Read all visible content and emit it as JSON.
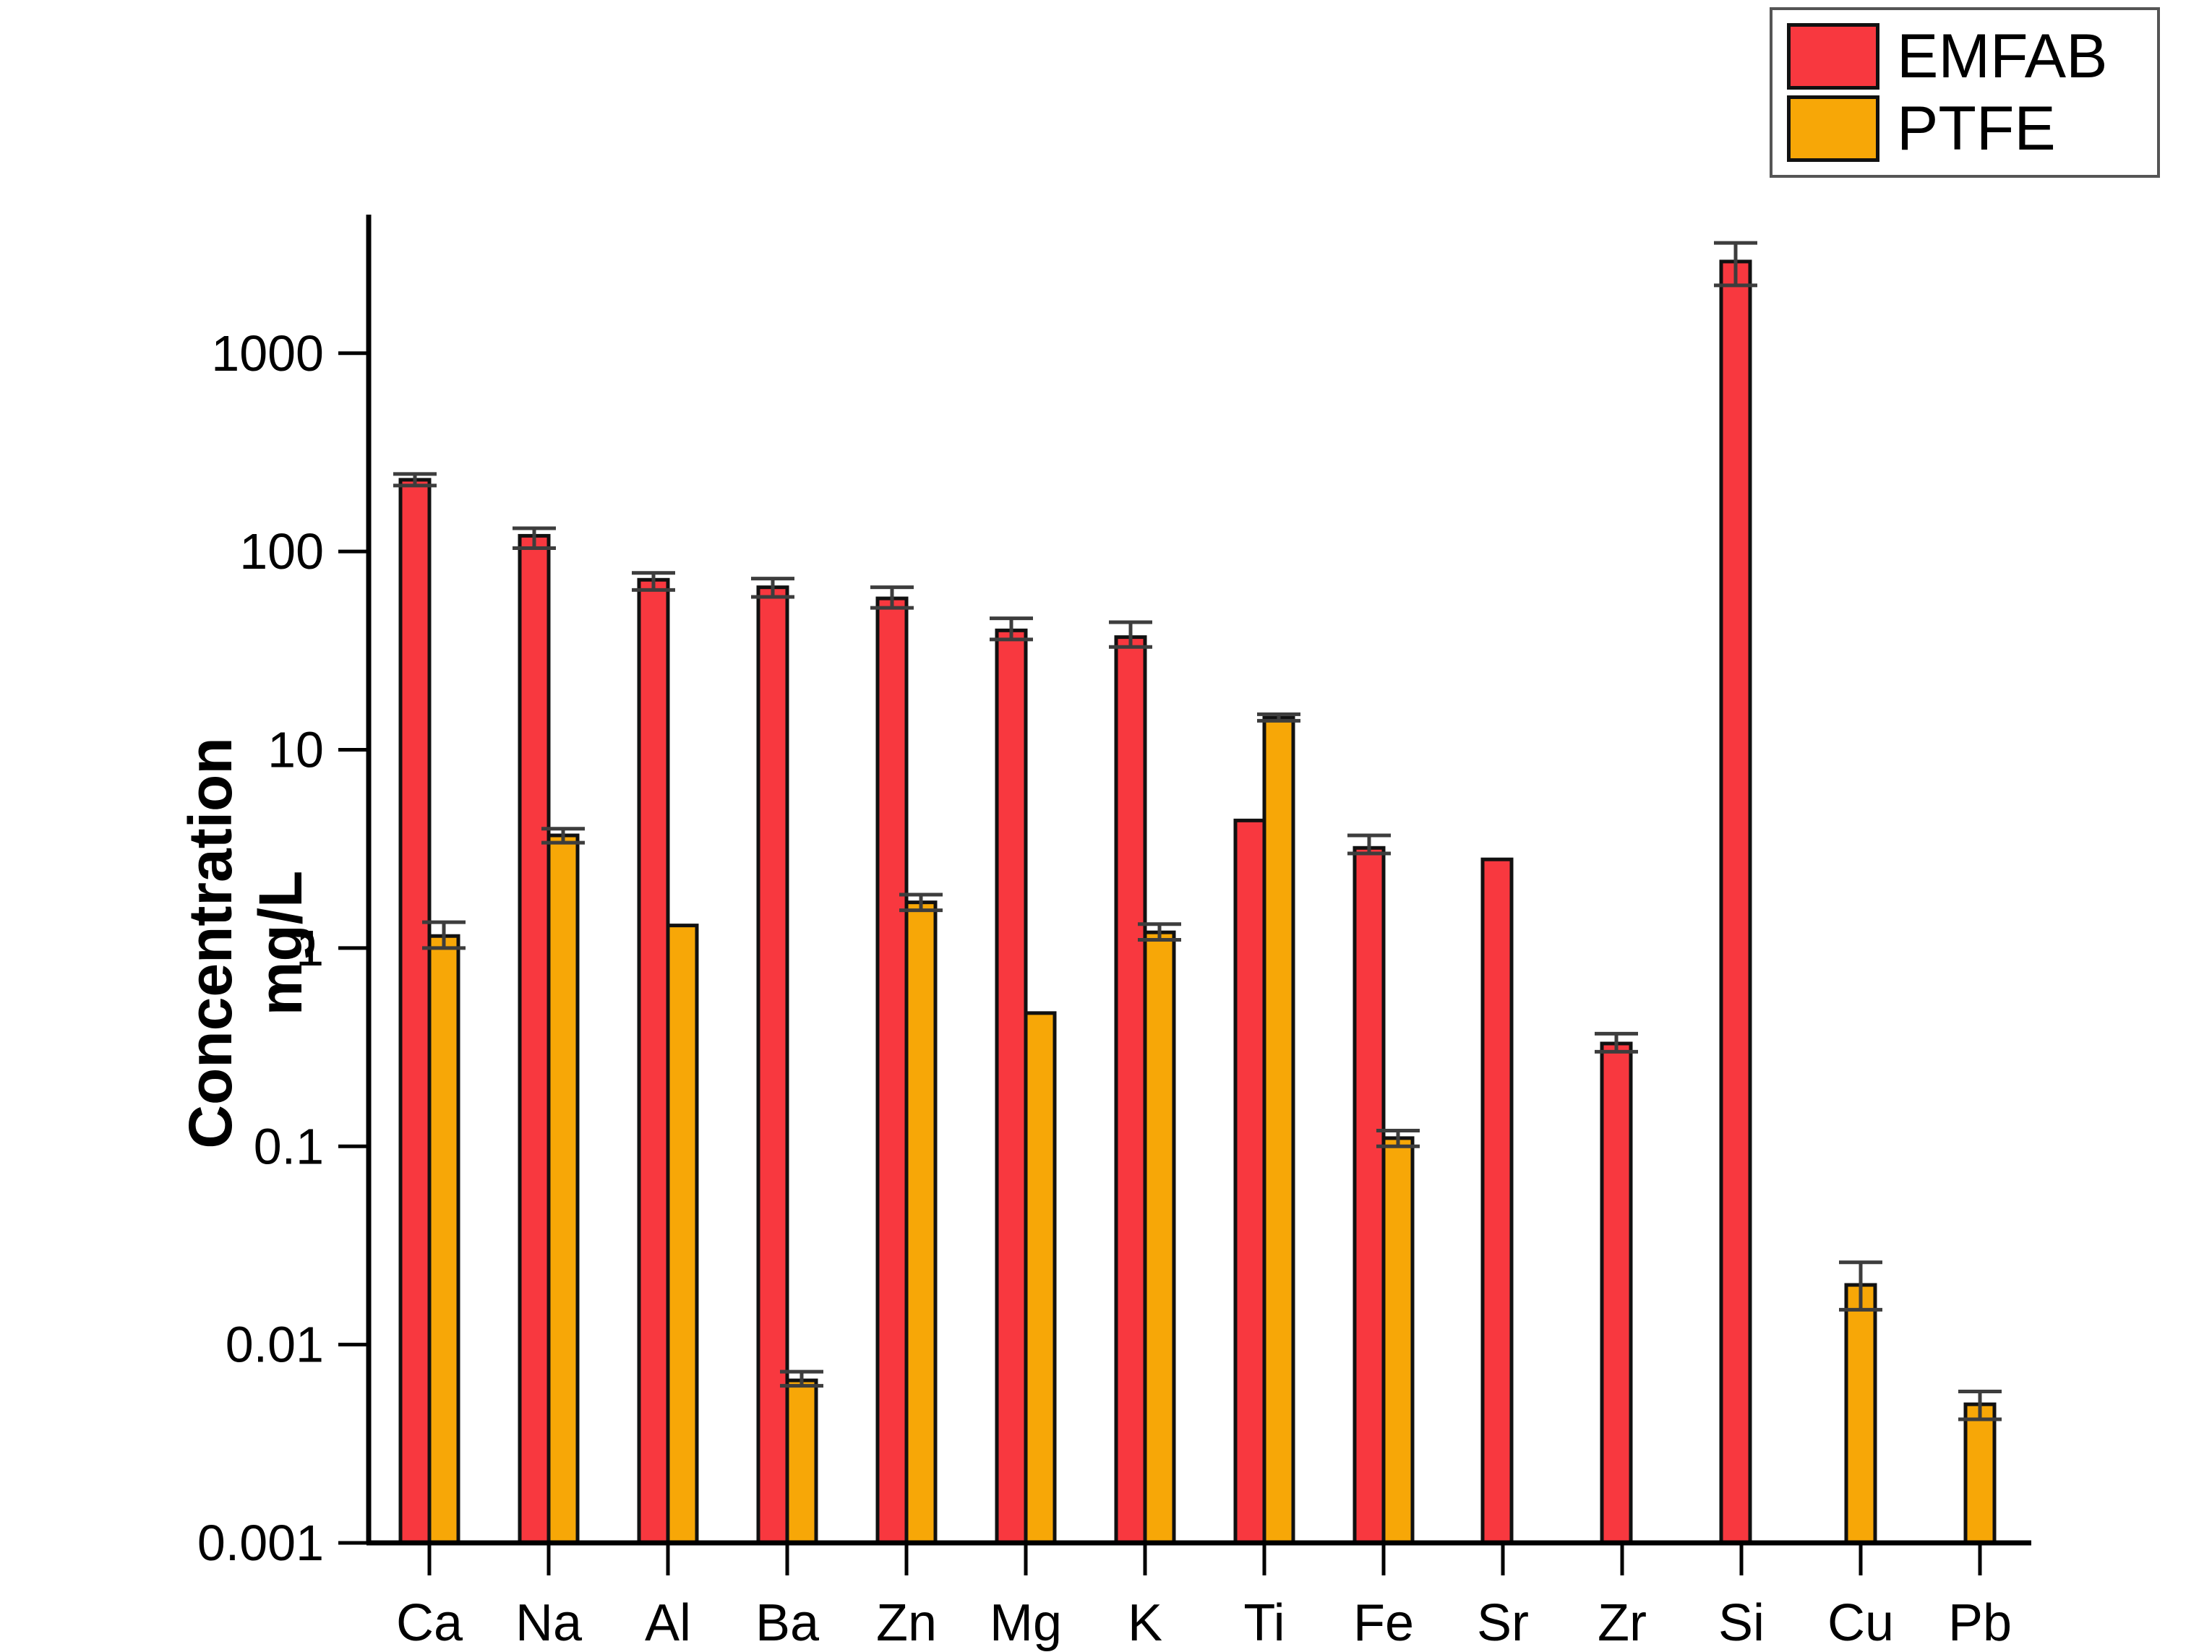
{
  "y_axis": {
    "title_line1": "Concentration",
    "title_line2": "mg/L",
    "tick_labels": [
      "1000",
      "100",
      "10",
      "1",
      "0.1",
      "0.01",
      "0.001"
    ],
    "tick_values": [
      1000,
      100,
      10,
      1,
      0.1,
      0.01,
      0.001
    ]
  },
  "legend": {
    "items": [
      {
        "label": "EMFAB",
        "color": "#F8383F"
      },
      {
        "label": "PTFE",
        "color": "#F7A707"
      }
    ]
  },
  "colors": {
    "emfab": "#F8383F",
    "ptfe": "#F7A707",
    "bar_border": "#111111",
    "axis": "#000000",
    "error_bar": "#3d3d3d"
  },
  "chart_data": {
    "type": "bar",
    "title": "",
    "xlabel": "",
    "ylabel": "Concentration mg/L",
    "y_scale": "log",
    "ylim": [
      0.001,
      5000
    ],
    "grid": false,
    "legend_position": "top-right",
    "categories": [
      "Ca",
      "Na",
      "Al",
      "Ba",
      "Zn",
      "Mg",
      "K",
      "Ti",
      "Fe",
      "Sr",
      "Zr",
      "Si",
      "Cu",
      "Pb"
    ],
    "series": [
      {
        "name": "EMFAB",
        "color": "#F8383F",
        "values": [
          230,
          120,
          72,
          66,
          58,
          40,
          37,
          4.4,
          3.2,
          2.8,
          0.33,
          2900,
          null,
          null
        ],
        "err_low": [
          215,
          104,
          64,
          59,
          52,
          36,
          33,
          4.4,
          3.0,
          2.8,
          0.3,
          2200,
          null,
          null
        ],
        "err_high": [
          246,
          131,
          78,
          73,
          66,
          46,
          44,
          4.4,
          3.7,
          2.8,
          0.37,
          3600,
          null,
          null
        ]
      },
      {
        "name": "PTFE",
        "color": "#F7A707",
        "values": [
          1.15,
          3.7,
          1.3,
          0.0066,
          1.7,
          0.47,
          1.2,
          14.5,
          0.11,
          null,
          null,
          null,
          0.02,
          0.005
        ],
        "err_low": [
          1.0,
          3.4,
          1.3,
          0.0062,
          1.55,
          0.47,
          1.1,
          14.0,
          0.1,
          null,
          null,
          null,
          0.015,
          0.0042
        ],
        "err_high": [
          1.35,
          4.0,
          1.3,
          0.0073,
          1.86,
          0.47,
          1.32,
          15.1,
          0.12,
          null,
          null,
          null,
          0.026,
          0.0058
        ]
      }
    ]
  }
}
